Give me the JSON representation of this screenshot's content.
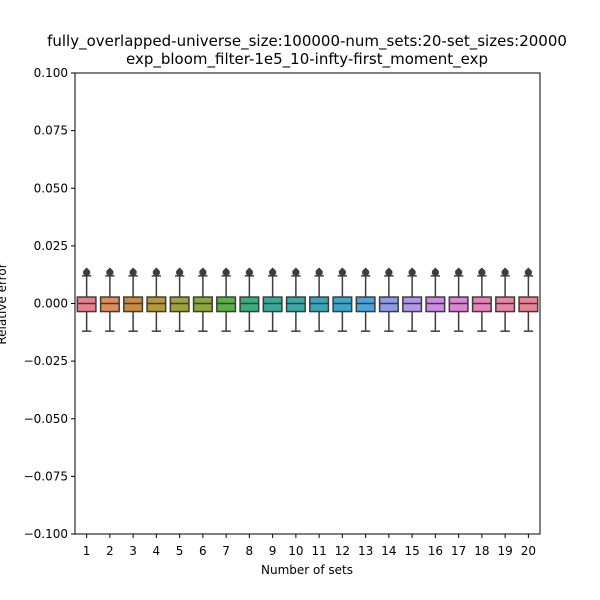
{
  "chart_data": {
    "type": "boxplot",
    "title_lines": [
      "fully_overlapped-universe_size:100000-num_sets:20-set_sizes:20000",
      "exp_bloom_filter-1e5_10-infty-first_moment_exp"
    ],
    "xlabel": "Number of sets",
    "ylabel": "Relative error",
    "ylim": [
      -0.1,
      0.1
    ],
    "yticks": [
      0.1,
      0.075,
      0.05,
      0.025,
      0.0,
      -0.025,
      -0.05,
      -0.075,
      -0.1
    ],
    "ytick_labels": [
      "0.100",
      "0.075",
      "0.050",
      "0.025",
      "0.000",
      "−0.025",
      "−0.050",
      "−0.075",
      "−0.100"
    ],
    "categories": [
      "1",
      "2",
      "3",
      "4",
      "5",
      "6",
      "7",
      "8",
      "9",
      "10",
      "11",
      "12",
      "13",
      "14",
      "15",
      "16",
      "17",
      "18",
      "19",
      "20"
    ],
    "colors": [
      "#e8808d",
      "#dc8f5a",
      "#c98d3f",
      "#b49a3c",
      "#a3a13a",
      "#8ba83a",
      "#5cb04b",
      "#3bae7d",
      "#38ab97",
      "#39a9a9",
      "#3aa7bb",
      "#3ca6cb",
      "#4ea3dd",
      "#8a9fe8",
      "#b199ea",
      "#cc8ce8",
      "#dd86d6",
      "#e683bb",
      "#e987a8",
      "#e88498"
    ],
    "box_stats": {
      "q1": -0.0035,
      "median": 0.0,
      "q3": 0.0028,
      "whisker_low": -0.012,
      "whisker_high": 0.012,
      "outliers": [
        0.013,
        0.0135,
        0.014
      ]
    },
    "grid": false
  }
}
